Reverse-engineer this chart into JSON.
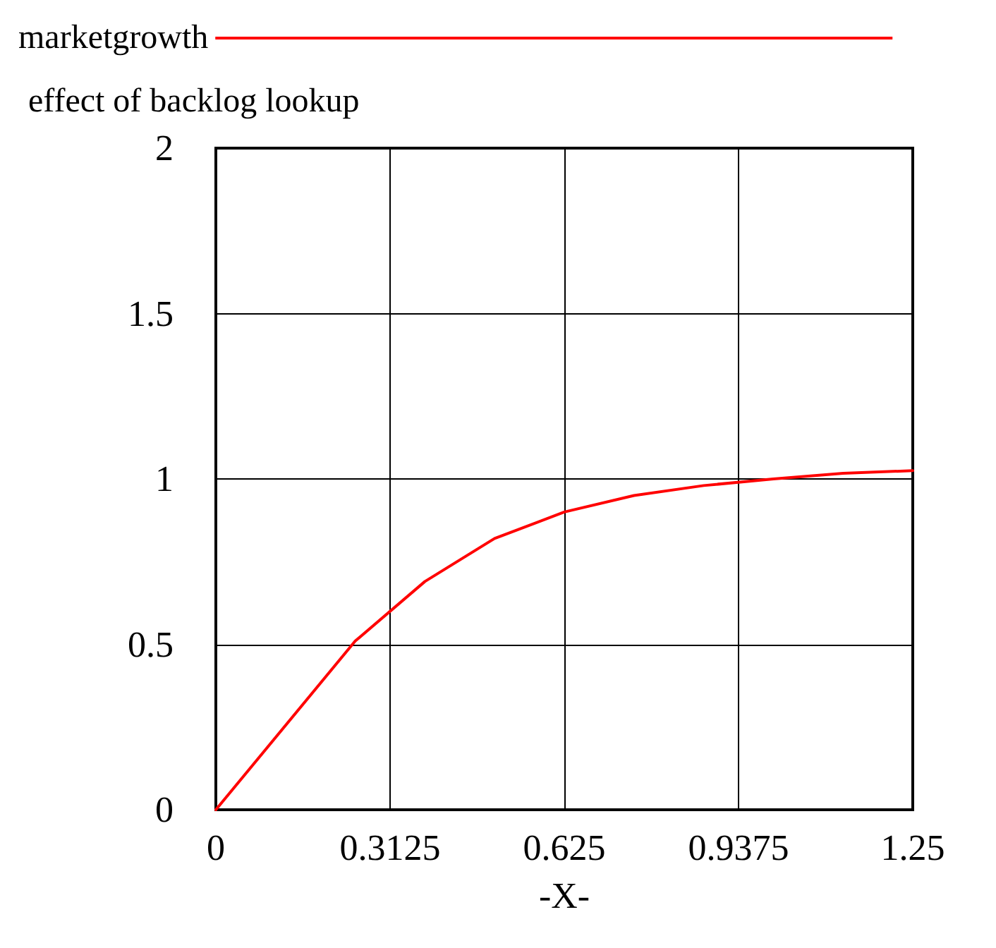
{
  "chart_data": {
    "type": "line",
    "ylabel": "effect of backlog lookup",
    "xlabel": "-X-",
    "x": [
      0,
      0.25,
      0.375,
      0.5,
      0.625,
      0.75,
      0.875,
      1,
      1.125,
      1.25
    ],
    "series": [
      {
        "name": "marketgrowth",
        "color": "#ff0000",
        "values": [
          0,
          0.51,
          0.69,
          0.82,
          0.9,
          0.95,
          0.98,
          1,
          1.017,
          1.025
        ]
      }
    ],
    "xlim": [
      0,
      1.25
    ],
    "xticks": [
      0,
      0.3125,
      0.625,
      0.9375,
      1.25
    ],
    "ylim": [
      0,
      2
    ],
    "yticks": [
      0,
      0.5,
      1,
      1.5,
      2
    ],
    "grid": true,
    "legend": "top left",
    "marker": "none",
    "line_style": "solid"
  }
}
